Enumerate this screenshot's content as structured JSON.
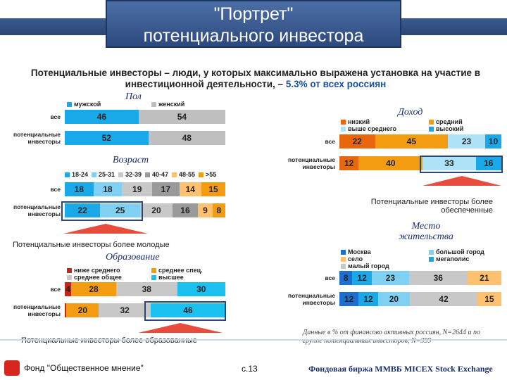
{
  "title": {
    "line1": "\"Портрет\"",
    "line2": "потенциального инвестора"
  },
  "subtitle": {
    "part1": "Потенциальные инвесторы – люди, у которых максимально выражена установка на участие в инвестиционной деятельности, –",
    "part2": "5.3% от всех россиян"
  },
  "chart_data": [
    {
      "type": "bar",
      "title": "Пол",
      "legend": [
        {
          "name": "мужской",
          "color": "#1aa9e8"
        },
        {
          "name": "женский",
          "color": "#bfbfbf"
        }
      ],
      "categories": [
        "все",
        "потенциальные инвесторы"
      ],
      "series": [
        {
          "name": "мужской",
          "values": [
            46,
            52
          ]
        },
        {
          "name": "женский",
          "values": [
            54,
            48
          ]
        }
      ]
    },
    {
      "type": "bar",
      "title": "Возраст",
      "legend": [
        {
          "name": "18-24",
          "color": "#1aa9e8"
        },
        {
          "name": "25-31",
          "color": "#7fd0f2"
        },
        {
          "name": "32-39",
          "color": "#c8c8c8"
        },
        {
          "name": "40-47",
          "color": "#9a9a9a"
        },
        {
          "name": "48-55",
          "color": "#ffc070"
        },
        {
          "name": ">55",
          "color": "#f39c12"
        }
      ],
      "categories": [
        "все",
        "потенциальные инвесторы"
      ],
      "series": [
        {
          "name": "18-24",
          "values": [
            18,
            22
          ]
        },
        {
          "name": "25-31",
          "values": [
            18,
            25
          ]
        },
        {
          "name": "32-39",
          "values": [
            19,
            20
          ]
        },
        {
          "name": "40-47",
          "values": [
            17,
            16
          ]
        },
        {
          "name": "48-55",
          "values": [
            14,
            9
          ]
        },
        {
          "name": ">55",
          "values": [
            15,
            8
          ]
        }
      ]
    },
    {
      "type": "bar",
      "title": "Образование",
      "legend": [
        {
          "name": "ниже среднего",
          "color": "#c0281b"
        },
        {
          "name": "среднее спец.",
          "color": "#f39c12"
        },
        {
          "name": "среднее общее",
          "color": "#c8c8c8"
        },
        {
          "name": "высшее",
          "color": "#1ac0f0"
        }
      ],
      "categories": [
        "все",
        "потенциальные инвесторы"
      ],
      "series": [
        {
          "name": "ниже среднего",
          "values": [
            4,
            1
          ]
        },
        {
          "name": "среднее спец.",
          "values": [
            28,
            20
          ]
        },
        {
          "name": "среднее общее",
          "values": [
            38,
            32
          ]
        },
        {
          "name": "высшее",
          "values": [
            30,
            46
          ]
        }
      ]
    },
    {
      "type": "bar",
      "title": "Доход",
      "legend": [
        {
          "name": "низкий",
          "color": "#e8670c"
        },
        {
          "name": "средний",
          "color": "#f39c12"
        },
        {
          "name": "выше среднего",
          "color": "#aee3f7"
        },
        {
          "name": "высокий",
          "color": "#1aa9e8"
        }
      ],
      "categories": [
        "все",
        "потенциальные инвесторы"
      ],
      "series": [
        {
          "name": "низкий",
          "values": [
            22,
            12
          ]
        },
        {
          "name": "средний",
          "values": [
            45,
            40
          ]
        },
        {
          "name": "выше среднего",
          "values": [
            23,
            33
          ]
        },
        {
          "name": "высокий",
          "values": [
            10,
            16
          ]
        }
      ]
    },
    {
      "type": "bar",
      "title": "Место жительства",
      "legend": [
        {
          "name": "Москва",
          "color": "#1a6fd1"
        },
        {
          "name": "большой город",
          "color": "#7fd0f2"
        },
        {
          "name": "село",
          "color": "#ffc070"
        },
        {
          "name": "мегаполис",
          "color": "#1aa9e8"
        },
        {
          "name": "малый город",
          "color": "#c8c8c8"
        }
      ],
      "categories": [
        "все",
        "потенциальные инвесторы"
      ],
      "series": [
        {
          "name": "Москва",
          "values": [
            8,
            12
          ]
        },
        {
          "name": "мегаполис",
          "values": [
            12,
            12
          ]
        },
        {
          "name": "большой город",
          "values": [
            23,
            20
          ]
        },
        {
          "name": "малый город",
          "values": [
            36,
            42
          ]
        },
        {
          "name": "село",
          "values": [
            21,
            15
          ]
        }
      ]
    }
  ],
  "notes": {
    "young": "Потенциальные инвесторы более молодые",
    "educated": "Потенциальные инвесторы более образованные",
    "rich": "Потенциальные инвесторы более обеспеченные",
    "source": "Данные в % от финансово активных россиян, N=2644 и по группе потенциальных инвесторов, N=399"
  },
  "footer": {
    "org": "Фонд \"Общественное мнение\"",
    "page": "с.13",
    "logos": "Фондовая биржа ММВБ  MICEX Stock Exchange"
  }
}
